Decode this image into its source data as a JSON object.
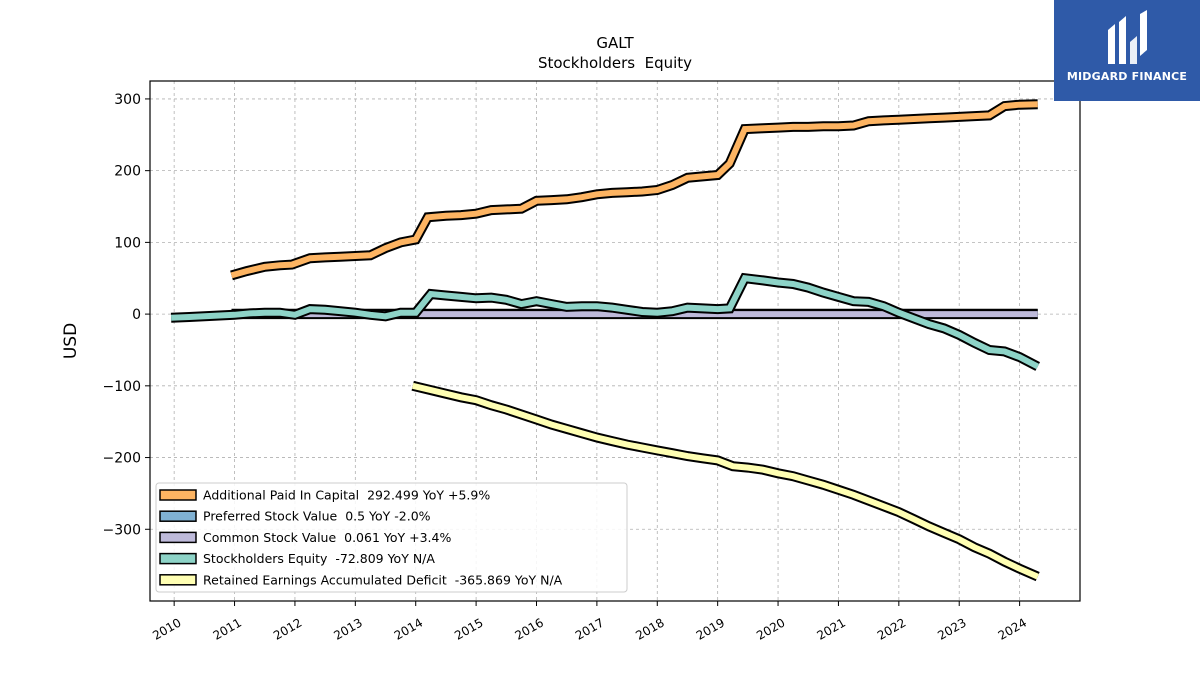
{
  "brand": {
    "name": "MIDGARD FINANCE",
    "logo_icon": "midgard-m-mark-icon",
    "background": "#2f5aa8"
  },
  "chart_data": {
    "type": "line",
    "title": "GALT",
    "subtitle": "Stockholders  Equity",
    "xlabel": "",
    "ylabel": "USD",
    "xlim": [
      2009.6,
      2025.0
    ],
    "ylim": [
      -400,
      325
    ],
    "x_ticks": [
      2010,
      2011,
      2012,
      2013,
      2014,
      2015,
      2016,
      2017,
      2018,
      2019,
      2020,
      2021,
      2022,
      2023,
      2024
    ],
    "x_tick_labels": [
      "2010",
      "2011",
      "2012",
      "2013",
      "2014",
      "2015",
      "2016",
      "2017",
      "2018",
      "2019",
      "2020",
      "2021",
      "2022",
      "2023",
      "2024"
    ],
    "y_ticks": [
      300,
      200,
      100,
      0,
      -100,
      -200,
      -300
    ],
    "y_tick_labels": [
      "300",
      "200",
      "100",
      "0",
      "−100",
      "−200",
      "−300"
    ],
    "grid": true,
    "legend_position": "lower-left",
    "series": [
      {
        "name": "Additional Paid In Capital  292.499 YoY +5.9%",
        "color": "#fdb462",
        "x": [
          2010.95,
          2011.2,
          2011.5,
          2011.75,
          2011.95,
          2012.25,
          2012.5,
          2012.75,
          2013.0,
          2013.25,
          2013.5,
          2013.75,
          2014.0,
          2014.2,
          2014.5,
          2014.75,
          2015.0,
          2015.25,
          2015.5,
          2015.75,
          2016.0,
          2016.25,
          2016.5,
          2016.75,
          2017.0,
          2017.25,
          2017.5,
          2017.75,
          2018.0,
          2018.25,
          2018.5,
          2018.75,
          2019.0,
          2019.2,
          2019.45,
          2019.75,
          2020.0,
          2020.25,
          2020.5,
          2020.75,
          2021.0,
          2021.25,
          2021.5,
          2021.75,
          2022.0,
          2022.25,
          2022.5,
          2022.75,
          2023.0,
          2023.25,
          2023.5,
          2023.75,
          2024.0,
          2024.3
        ],
        "values": [
          54,
          60,
          66,
          68,
          69,
          78,
          79,
          80,
          81,
          82,
          92,
          100,
          104,
          135,
          137,
          138,
          140,
          145,
          146,
          147,
          158,
          159,
          160,
          163,
          167,
          169,
          170,
          171,
          173,
          180,
          190,
          192,
          194,
          210,
          258,
          259,
          260,
          261,
          261,
          262,
          262,
          263,
          269,
          270,
          271,
          272,
          273,
          274,
          275,
          276,
          277,
          290,
          292,
          292.5
        ]
      },
      {
        "name": "Preferred Stock Value  0.5 YoY -2.0%",
        "color": "#80b1d3",
        "x": [
          2010.95,
          2024.3
        ],
        "values": [
          0.5,
          0.5
        ]
      },
      {
        "name": "Common Stock Value  0.061 YoY +3.4%",
        "color": "#bebada",
        "x": [
          2010.95,
          2024.3
        ],
        "values": [
          0.06,
          0.06
        ]
      },
      {
        "name": "Stockholders Equity  -72.809 YoY N/A",
        "color": "#8dd3c7",
        "x": [
          2009.95,
          2010.25,
          2010.5,
          2010.75,
          2011.0,
          2011.25,
          2011.5,
          2011.75,
          2012.0,
          2012.25,
          2012.5,
          2012.75,
          2013.0,
          2013.25,
          2013.5,
          2013.75,
          2014.0,
          2014.25,
          2014.5,
          2014.75,
          2015.0,
          2015.25,
          2015.5,
          2015.75,
          2016.0,
          2016.25,
          2016.5,
          2016.75,
          2017.0,
          2017.25,
          2017.5,
          2017.75,
          2018.0,
          2018.25,
          2018.5,
          2018.75,
          2019.0,
          2019.2,
          2019.45,
          2019.75,
          2020.0,
          2020.25,
          2020.5,
          2020.75,
          2021.0,
          2021.25,
          2021.5,
          2021.75,
          2022.0,
          2022.25,
          2022.5,
          2022.75,
          2023.0,
          2023.25,
          2023.5,
          2023.75,
          2024.0,
          2024.3
        ],
        "values": [
          -5,
          -4,
          -3,
          -2,
          -1,
          1,
          2,
          2,
          -1,
          7,
          6,
          4,
          2,
          -1,
          -3,
          2,
          2,
          28,
          26,
          24,
          22,
          23,
          20,
          14,
          18,
          14,
          10,
          11,
          11,
          9,
          6,
          3,
          2,
          4,
          9,
          8,
          7,
          8,
          50,
          47,
          44,
          42,
          37,
          30,
          24,
          18,
          17,
          11,
          2,
          -6,
          -14,
          -20,
          -29,
          -40,
          -50,
          -52,
          -60,
          -73
        ]
      },
      {
        "name": "Retained Earnings Accumulated Deficit  -365.869 YoY N/A",
        "color": "#ffffb3",
        "x": [
          2013.95,
          2014.25,
          2014.5,
          2014.75,
          2015.0,
          2015.25,
          2015.5,
          2015.75,
          2016.0,
          2016.25,
          2016.5,
          2016.75,
          2017.0,
          2017.25,
          2017.5,
          2017.75,
          2018.0,
          2018.25,
          2018.5,
          2018.75,
          2019.0,
          2019.25,
          2019.5,
          2019.75,
          2020.0,
          2020.25,
          2020.5,
          2020.75,
          2021.0,
          2021.25,
          2021.5,
          2021.75,
          2022.0,
          2022.25,
          2022.5,
          2022.75,
          2023.0,
          2023.25,
          2023.5,
          2023.75,
          2024.0,
          2024.3
        ],
        "values": [
          -100,
          -106,
          -111,
          -116,
          -120,
          -127,
          -133,
          -140,
          -147,
          -154,
          -160,
          -166,
          -172,
          -177,
          -182,
          -186,
          -190,
          -194,
          -198,
          -201,
          -204,
          -212,
          -214,
          -217,
          -222,
          -226,
          -232,
          -238,
          -245,
          -252,
          -260,
          -268,
          -276,
          -286,
          -296,
          -305,
          -314,
          -325,
          -334,
          -345,
          -355,
          -366
        ]
      }
    ]
  }
}
